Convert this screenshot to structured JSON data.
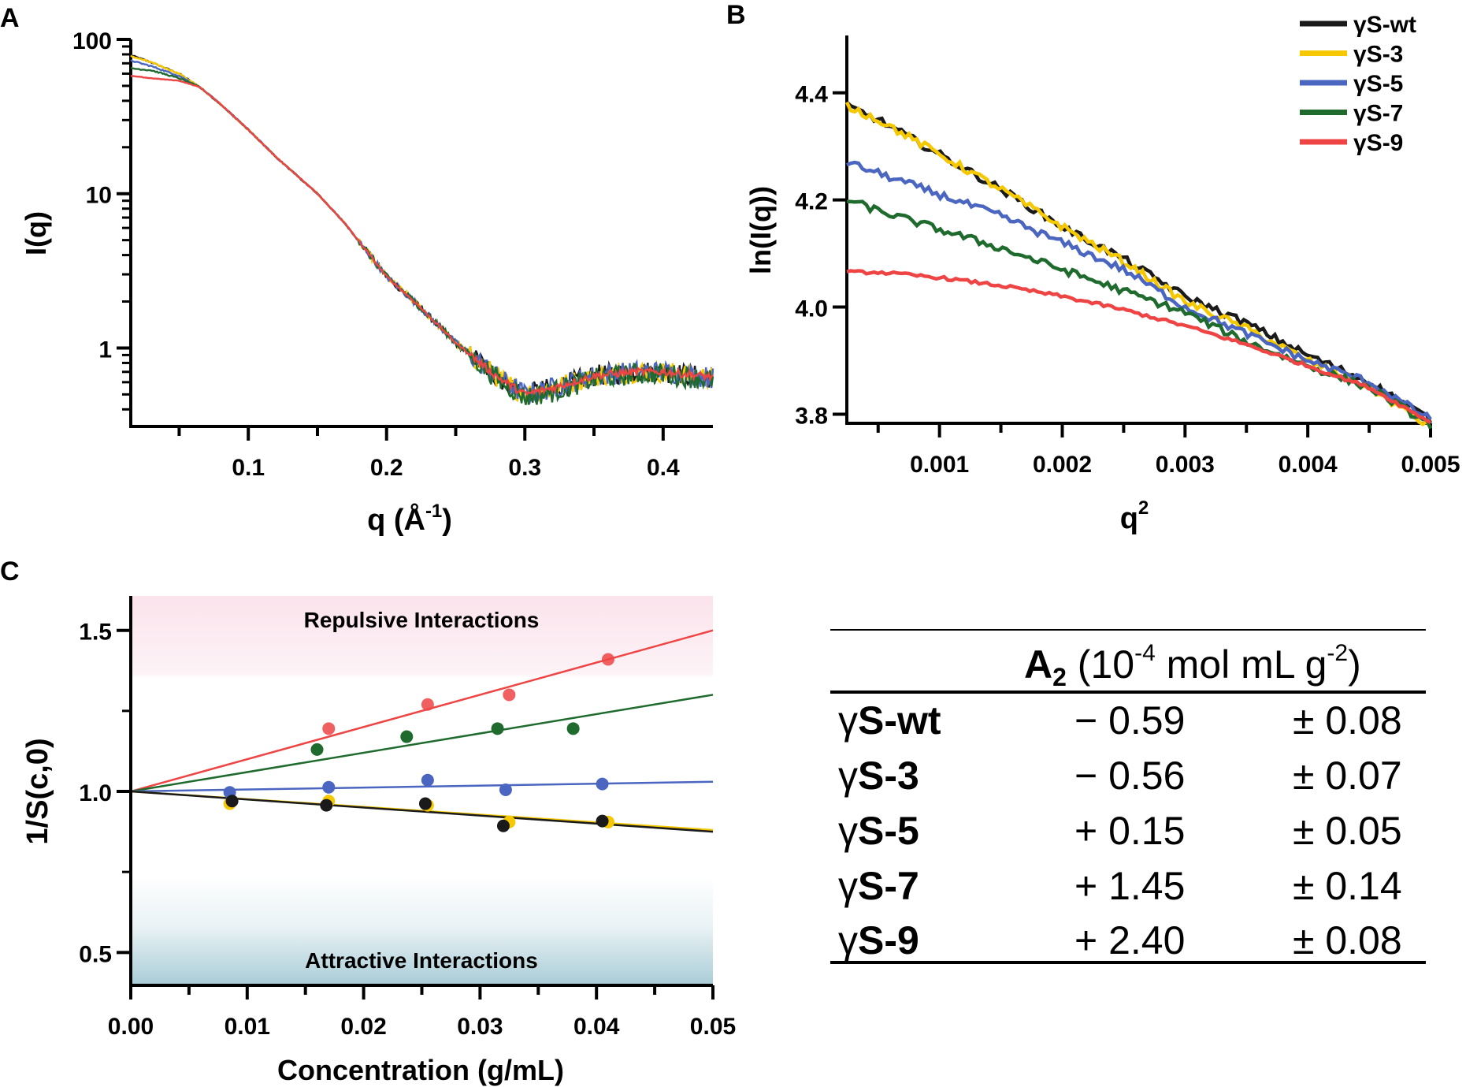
{
  "panel_labels": [
    "A",
    "B",
    "C"
  ],
  "colors": {
    "wt": "#1a1a1a",
    "s3": "#f5c800",
    "s5": "#4a66c0",
    "s7": "#1f6b2e",
    "s9": "#ef4444",
    "repulsive_bg": "#fbe6ee",
    "attractive_bg": "#a9ccd6"
  },
  "chart_data": [
    {
      "id": "A",
      "type": "line",
      "xlabel": "q (Å",
      "xlabel_sup": "-1",
      "xlabel_end": ")",
      "ylabel": "I(q)",
      "yscale": "log",
      "xlim": [
        0.015,
        0.436
      ],
      "ylim": [
        0.31,
        100
      ],
      "xticks": [
        {
          "v": 0.1,
          "label": "0.1"
        },
        {
          "v": 0.2,
          "label": "0.2"
        },
        {
          "v": 0.3,
          "label": "0.3"
        },
        {
          "v": 0.4,
          "label": "0.4"
        }
      ],
      "yticks": [
        {
          "v": 1,
          "label": "1"
        },
        {
          "v": 10,
          "label": "10"
        },
        {
          "v": 100,
          "label": "100"
        }
      ],
      "x": [
        0.015,
        0.03,
        0.05,
        0.065,
        0.08,
        0.1,
        0.12,
        0.15,
        0.17,
        0.2,
        0.22,
        0.24,
        0.25,
        0.28,
        0.3,
        0.32,
        0.35,
        0.38,
        0.4,
        0.436
      ],
      "series": [
        {
          "name": "γS-wt",
          "color_key": "wt",
          "values": [
            79,
            71,
            60,
            49,
            38,
            26,
            17.3,
            10,
            6.4,
            2.9,
            2.0,
            1.33,
            1.08,
            0.65,
            0.5,
            0.55,
            0.66,
            0.7,
            0.7,
            0.64
          ]
        },
        {
          "name": "γS-3",
          "color_key": "s3",
          "values": [
            78,
            71,
            60,
            49,
            38,
            26,
            17.3,
            10,
            6.4,
            2.9,
            2.0,
            1.33,
            1.08,
            0.65,
            0.5,
            0.55,
            0.66,
            0.7,
            0.7,
            0.64
          ]
        },
        {
          "name": "γS-5",
          "color_key": "s5",
          "values": [
            73,
            67,
            58,
            49,
            38,
            26,
            17.3,
            10,
            6.4,
            2.9,
            2.0,
            1.33,
            1.08,
            0.65,
            0.5,
            0.55,
            0.66,
            0.7,
            0.7,
            0.64
          ]
        },
        {
          "name": "γS-7",
          "color_key": "s7",
          "values": [
            65,
            63,
            56,
            49,
            38,
            26,
            17.3,
            10,
            6.4,
            2.9,
            2.0,
            1.33,
            1.08,
            0.63,
            0.48,
            0.52,
            0.63,
            0.68,
            0.68,
            0.62
          ]
        },
        {
          "name": "γS-9",
          "color_key": "s9",
          "values": [
            58,
            56,
            54,
            49,
            38,
            26,
            17.3,
            10,
            6.4,
            2.9,
            2.0,
            1.33,
            1.08,
            0.65,
            0.5,
            0.55,
            0.66,
            0.7,
            0.7,
            0.65
          ]
        }
      ]
    },
    {
      "id": "B",
      "type": "line",
      "xlabel": "q",
      "xlabel_sup": "2",
      "ylabel": "ln(I(q))",
      "xlim": [
        0.000245,
        0.005
      ],
      "ylim": [
        3.783,
        4.507
      ],
      "xticks": [
        {
          "v": 0.001,
          "label": "0.001"
        },
        {
          "v": 0.002,
          "label": "0.002"
        },
        {
          "v": 0.003,
          "label": "0.003"
        },
        {
          "v": 0.004,
          "label": "0.004"
        },
        {
          "v": 0.005,
          "label": "0.005"
        }
      ],
      "yticks": [
        {
          "v": 3.8,
          "label": "3.8"
        },
        {
          "v": 4.0,
          "label": "4.0"
        },
        {
          "v": 4.2,
          "label": "4.2"
        },
        {
          "v": 4.4,
          "label": "4.4"
        }
      ],
      "legend_position": "top-right",
      "x": [
        0.00025,
        0.0005,
        0.001,
        0.0015,
        0.002,
        0.0025,
        0.003,
        0.0035,
        0.004,
        0.0045,
        0.005
      ],
      "series": [
        {
          "name": "γS-wt",
          "color_key": "wt",
          "values": [
            4.375,
            4.35,
            4.285,
            4.22,
            4.15,
            4.09,
            4.02,
            3.97,
            3.91,
            3.86,
            3.79
          ]
        },
        {
          "name": "γS-3",
          "color_key": "s3",
          "values": [
            4.375,
            4.35,
            4.285,
            4.22,
            4.15,
            4.085,
            4.01,
            3.96,
            3.9,
            3.85,
            3.775
          ]
        },
        {
          "name": "γS-5",
          "color_key": "s5",
          "values": [
            4.27,
            4.25,
            4.21,
            4.17,
            4.12,
            4.07,
            4.0,
            3.95,
            3.9,
            3.86,
            3.79
          ]
        },
        {
          "name": "γS-7",
          "color_key": "s7",
          "values": [
            4.2,
            4.18,
            4.145,
            4.11,
            4.07,
            4.03,
            3.99,
            3.935,
            3.89,
            3.85,
            3.78
          ]
        },
        {
          "name": "γS-9",
          "color_key": "s9",
          "values": [
            4.065,
            4.065,
            4.055,
            4.04,
            4.02,
            3.995,
            3.965,
            3.93,
            3.89,
            3.85,
            3.785
          ]
        }
      ]
    },
    {
      "id": "C",
      "type": "scatter",
      "xlabel": "Concentration (g/mL)",
      "ylabel": "1/S(c,0)",
      "xlim": [
        0,
        0.05
      ],
      "ylim": [
        0.398,
        1.607
      ],
      "xticks": [
        {
          "v": 0,
          "label": "0.00"
        },
        {
          "v": 0.01,
          "label": "0.01"
        },
        {
          "v": 0.02,
          "label": "0.02"
        },
        {
          "v": 0.03,
          "label": "0.03"
        },
        {
          "v": 0.04,
          "label": "0.04"
        },
        {
          "v": 0.05,
          "label": "0.05"
        }
      ],
      "yticks": [
        {
          "v": 0.5,
          "label": "0.5"
        },
        {
          "v": 1.0,
          "label": "1.0"
        },
        {
          "v": 1.5,
          "label": "1.5"
        }
      ],
      "annotations": {
        "top": "Repulsive Interactions",
        "bottom": "Attractive Interactions"
      },
      "series": [
        {
          "name": "γS-9",
          "color_key": "s9",
          "fit": [
            1.0,
            1.5
          ],
          "points": [
            [
              0.017,
              1.195
            ],
            [
              0.0255,
              1.27
            ],
            [
              0.0325,
              1.3
            ],
            [
              0.041,
              1.41
            ]
          ]
        },
        {
          "name": "γS-7",
          "color_key": "s7",
          "fit": [
            1.0,
            1.3
          ],
          "points": [
            [
              0.016,
              1.13
            ],
            [
              0.0237,
              1.17
            ],
            [
              0.0315,
              1.195
            ],
            [
              0.038,
              1.195
            ]
          ]
        },
        {
          "name": "γS-5",
          "color_key": "s5",
          "fit": [
            1.0,
            1.03
          ],
          "points": [
            [
              0.0085,
              0.997
            ],
            [
              0.017,
              1.013
            ],
            [
              0.0255,
              1.035
            ],
            [
              0.0322,
              1.005
            ],
            [
              0.0405,
              1.023
            ]
          ]
        },
        {
          "name": "γS-3",
          "color_key": "s3",
          "fit": [
            1.0,
            0.88
          ],
          "points": [
            [
              0.0085,
              0.962
            ],
            [
              0.017,
              0.97
            ],
            [
              0.0255,
              0.957
            ],
            [
              0.0325,
              0.905
            ],
            [
              0.041,
              0.905
            ]
          ]
        },
        {
          "name": "γS-wt",
          "color_key": "wt",
          "fit": [
            1.0,
            0.875
          ],
          "points": [
            [
              0.0087,
              0.97
            ],
            [
              0.0168,
              0.957
            ],
            [
              0.0253,
              0.962
            ],
            [
              0.032,
              0.893
            ],
            [
              0.0405,
              0.908
            ]
          ]
        }
      ]
    }
  ],
  "table": {
    "header": {
      "symbol": "A",
      "sub": "2",
      "unit_pre": " (10",
      "exp1": "-4",
      "unit_mid": " mol mL g",
      "exp2": "-2",
      "unit_post": ")"
    },
    "rows": [
      {
        "gamma": "γ",
        "name": "S-wt",
        "value": "− 0.59",
        "error": "± 0.08"
      },
      {
        "gamma": "γ",
        "name": "S-3",
        "value": "− 0.56",
        "error": "± 0.07"
      },
      {
        "gamma": "γ",
        "name": "S-5",
        "value": "+ 0.15",
        "error": "± 0.05"
      },
      {
        "gamma": "γ",
        "name": "S-7",
        "value": "+ 1.45",
        "error": "± 0.14"
      },
      {
        "gamma": "γ",
        "name": "S-9",
        "value": "+ 2.40",
        "error": "± 0.08"
      }
    ]
  }
}
